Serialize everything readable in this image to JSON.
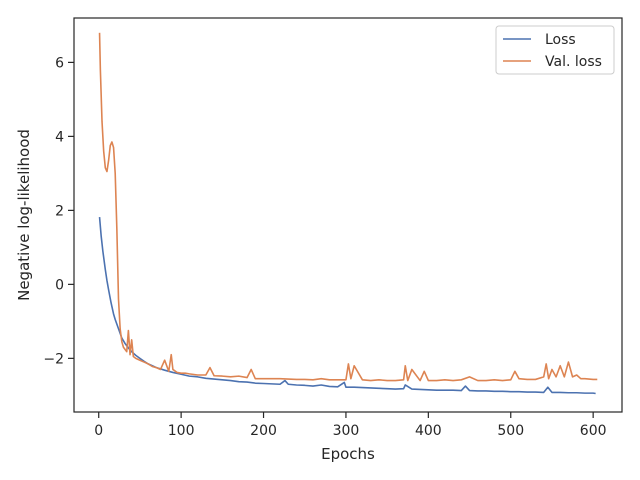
{
  "chart_data": {
    "type": "line",
    "xlabel": "Epochs",
    "ylabel": "Negative log-likelihood",
    "xlim": [
      -30,
      635
    ],
    "ylim": [
      -3.45,
      7.2
    ],
    "xticks": [
      0,
      100,
      200,
      300,
      400,
      500,
      600
    ],
    "yticks": [
      -2,
      0,
      2,
      4,
      6
    ],
    "ytick_labels": [
      "−2",
      "0",
      "2",
      "4",
      "6"
    ],
    "grid": false,
    "legend": {
      "placement": "top-right"
    },
    "series": [
      {
        "name": "Loss",
        "color": "#4c72b0",
        "x": [
          1,
          3,
          5,
          8,
          10,
          12,
          15,
          18,
          20,
          24,
          28,
          32,
          36,
          40,
          45,
          50,
          55,
          60,
          70,
          80,
          90,
          100,
          110,
          120,
          130,
          140,
          150,
          160,
          170,
          180,
          190,
          200,
          210,
          220,
          226,
          230,
          240,
          250,
          260,
          270,
          280,
          290,
          298,
          300,
          310,
          320,
          330,
          340,
          350,
          360,
          370,
          372,
          380,
          390,
          400,
          410,
          420,
          430,
          440,
          445,
          450,
          460,
          470,
          480,
          490,
          500,
          510,
          520,
          530,
          540,
          545,
          550,
          560,
          570,
          580,
          590,
          600,
          603
        ],
        "y": [
          1.82,
          1.3,
          0.9,
          0.4,
          0.1,
          -0.15,
          -0.5,
          -0.8,
          -0.95,
          -1.2,
          -1.45,
          -1.6,
          -1.72,
          -1.82,
          -1.92,
          -2.0,
          -2.08,
          -2.15,
          -2.25,
          -2.32,
          -2.38,
          -2.43,
          -2.48,
          -2.5,
          -2.54,
          -2.56,
          -2.58,
          -2.6,
          -2.63,
          -2.64,
          -2.67,
          -2.68,
          -2.69,
          -2.7,
          -2.6,
          -2.7,
          -2.72,
          -2.73,
          -2.75,
          -2.72,
          -2.76,
          -2.77,
          -2.65,
          -2.78,
          -2.78,
          -2.79,
          -2.8,
          -2.81,
          -2.82,
          -2.83,
          -2.82,
          -2.72,
          -2.83,
          -2.84,
          -2.85,
          -2.86,
          -2.86,
          -2.86,
          -2.87,
          -2.75,
          -2.87,
          -2.88,
          -2.88,
          -2.89,
          -2.89,
          -2.9,
          -2.9,
          -2.91,
          -2.91,
          -2.92,
          -2.78,
          -2.92,
          -2.92,
          -2.93,
          -2.93,
          -2.94,
          -2.94,
          -2.95
        ]
      },
      {
        "name": "Val. loss",
        "color": "#dd8452",
        "x": [
          1,
          2,
          4,
          6,
          8,
          10,
          12,
          14,
          16,
          18,
          20,
          22,
          24,
          26,
          28,
          30,
          34,
          36,
          38,
          40,
          42,
          45,
          50,
          55,
          60,
          65,
          70,
          75,
          80,
          85,
          88,
          90,
          95,
          100,
          105,
          110,
          120,
          130,
          135,
          140,
          150,
          160,
          170,
          180,
          185,
          190,
          200,
          210,
          220,
          230,
          240,
          250,
          260,
          270,
          280,
          290,
          300,
          303,
          306,
          310,
          320,
          330,
          340,
          350,
          360,
          370,
          372,
          375,
          380,
          390,
          395,
          400,
          410,
          420,
          430,
          440,
          450,
          460,
          470,
          480,
          490,
          500,
          505,
          510,
          520,
          530,
          540,
          543,
          546,
          550,
          555,
          560,
          565,
          570,
          575,
          580,
          585,
          590,
          600,
          605
        ],
        "y": [
          6.8,
          5.8,
          4.4,
          3.6,
          3.15,
          3.05,
          3.35,
          3.75,
          3.85,
          3.7,
          3.0,
          1.5,
          -0.4,
          -1.2,
          -1.55,
          -1.7,
          -1.82,
          -1.25,
          -1.9,
          -1.5,
          -1.95,
          -2.0,
          -2.05,
          -2.1,
          -2.15,
          -2.22,
          -2.25,
          -2.3,
          -2.05,
          -2.35,
          -1.9,
          -2.3,
          -2.38,
          -2.4,
          -2.4,
          -2.42,
          -2.45,
          -2.45,
          -2.25,
          -2.47,
          -2.48,
          -2.5,
          -2.48,
          -2.52,
          -2.3,
          -2.55,
          -2.55,
          -2.55,
          -2.55,
          -2.56,
          -2.57,
          -2.57,
          -2.58,
          -2.55,
          -2.58,
          -2.58,
          -2.58,
          -2.15,
          -2.55,
          -2.2,
          -2.58,
          -2.6,
          -2.58,
          -2.6,
          -2.6,
          -2.58,
          -2.2,
          -2.6,
          -2.3,
          -2.6,
          -2.35,
          -2.6,
          -2.6,
          -2.58,
          -2.6,
          -2.58,
          -2.5,
          -2.6,
          -2.6,
          -2.58,
          -2.6,
          -2.58,
          -2.35,
          -2.55,
          -2.57,
          -2.57,
          -2.5,
          -2.15,
          -2.55,
          -2.3,
          -2.5,
          -2.2,
          -2.5,
          -2.1,
          -2.5,
          -2.45,
          -2.55,
          -2.55,
          -2.57,
          -2.57
        ]
      }
    ]
  }
}
